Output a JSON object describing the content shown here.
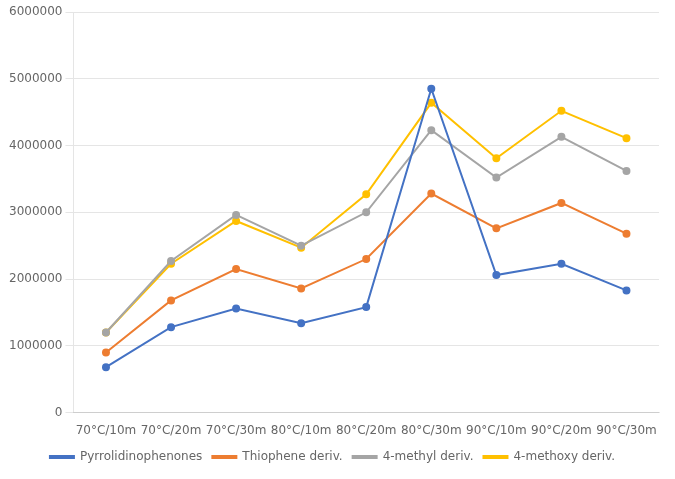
{
  "chart_data": {
    "type": "line",
    "categories": [
      "70°C/10m",
      "70°C/20m",
      "70°C/30m",
      "80°C/10m",
      "80°C/20m",
      "80°C/30m",
      "90°C/10m",
      "90°C/20m",
      "90°C/30m"
    ],
    "series": [
      {
        "name": "Pyrrolidinophenones",
        "color": "#4472C4",
        "marker": "circle",
        "values": [
          680000,
          1280000,
          1560000,
          1340000,
          1580000,
          4850000,
          2060000,
          2230000,
          1830000
        ]
      },
      {
        "name": "Thiophene deriv.",
        "color": "#ED7D31",
        "marker": "circle",
        "values": [
          900000,
          1680000,
          2150000,
          1860000,
          2300000,
          3280000,
          2760000,
          3140000,
          2680000
        ]
      },
      {
        "name": "4-methyl deriv.",
        "color": "#A5A5A5",
        "marker": "circle",
        "values": [
          1200000,
          2270000,
          2960000,
          2500000,
          3000000,
          4230000,
          3520000,
          4130000,
          3620000
        ]
      },
      {
        "name": "4-methoxy deriv.",
        "color": "#FFC000",
        "marker": "circle",
        "values": [
          1200000,
          2230000,
          2870000,
          2470000,
          3270000,
          4640000,
          3810000,
          4520000,
          4110000
        ]
      }
    ],
    "ylim": [
      0,
      6000000
    ],
    "yticks": [
      0,
      1000000,
      2000000,
      3000000,
      4000000,
      5000000,
      6000000
    ],
    "grid": true,
    "legend": "bottom"
  }
}
